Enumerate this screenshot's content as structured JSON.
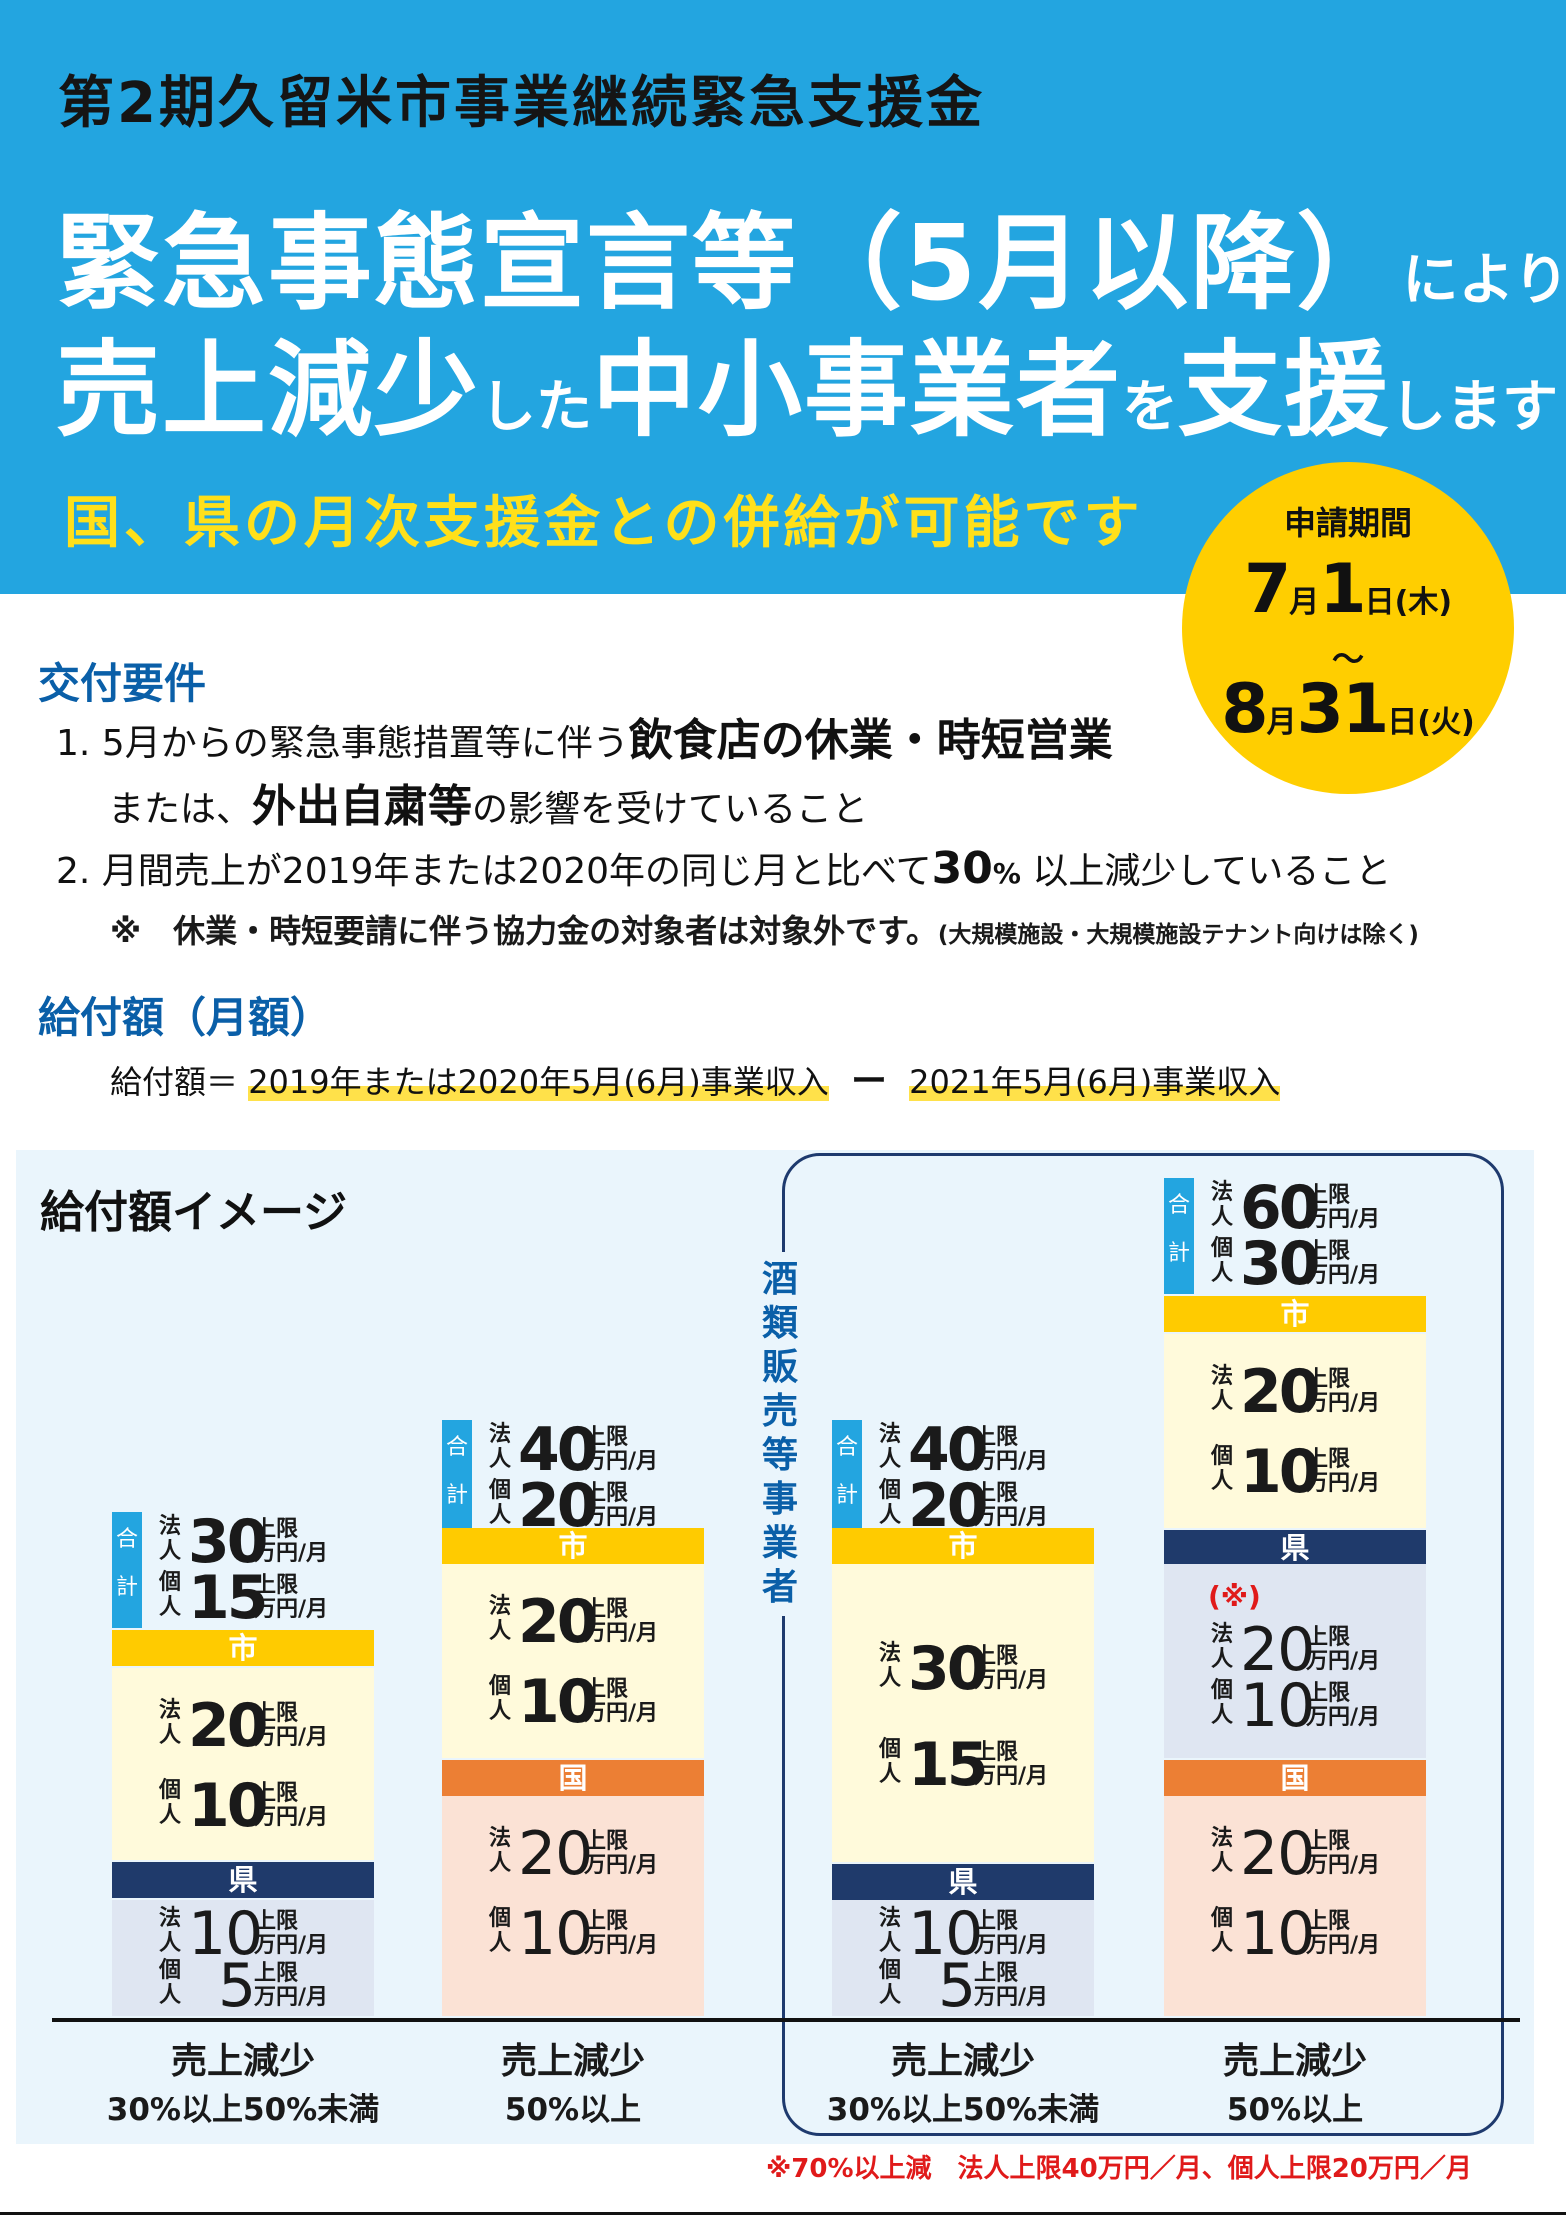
{
  "header": {
    "subtitle": "第2期久留米市事業継続緊急支援金",
    "line1_big": "緊急事態宣言等（5月以降）",
    "line1_small": "により",
    "line2_a": "売上減少",
    "line2_b": "した",
    "line2_c": "中小事業者",
    "line2_d": "を",
    "line2_e": "支援",
    "line2_f": "します",
    "yellow": "国、県の月次支援金との併給が可能です"
  },
  "period": {
    "label": "申請期間",
    "start_m": "7",
    "start_mu": "月",
    "start_d": "1",
    "start_du": "日(木)",
    "tilde": "〜",
    "end_m": "8",
    "end_mu": "月",
    "end_d": "31",
    "end_du": "日(火)"
  },
  "requirements": {
    "title": "交付要件",
    "r1_a": "1. 5月からの緊急事態措置等に伴う",
    "r1_b": "飲食店の休業・時短営業",
    "r1_c": "または、",
    "r1_d": "外出自粛等",
    "r1_e": "の影響を受けていること",
    "r2_a": "2. 月間売上が2019年または2020年の同じ月と比べて",
    "r2_b": "30",
    "r2_c": "%",
    "r2_d": " 以上減少していること",
    "note_a": "※　休業・時短要請に伴う協力金の対象者は対象外です。",
    "note_b": "(大規模施設・大規模施設テナント向けは除く)"
  },
  "amount": {
    "title": "給付額（月額）",
    "formula_label": "給付額＝",
    "formula_a": "2019年または2020年5月(6月)事業収入",
    "formula_minus": "ー",
    "formula_b": "2021年5月(6月)事業収入"
  },
  "image": {
    "title": "給付額イメージ",
    "liquor_label": [
      "酒",
      "類",
      "販",
      "売",
      "等",
      "事",
      "業",
      "者"
    ],
    "labels": {
      "corp": "法人",
      "indiv": "個人",
      "cap": "上限",
      "unit": "万円/月",
      "city": "市",
      "pref": "県",
      "nation": "国",
      "total": "合計",
      "ref": "(※)"
    },
    "columns": [
      {
        "total": [
          "30",
          "15"
        ],
        "city": [
          "20",
          "10"
        ],
        "pref": [
          "10",
          "5"
        ],
        "cap1": "売上減少",
        "cap2": "30%以上50%未満"
      },
      {
        "total": [
          "40",
          "20"
        ],
        "city": [
          "20",
          "10"
        ],
        "nation": [
          "20",
          "10"
        ],
        "cap1": "売上減少",
        "cap2": "50%以上"
      },
      {
        "total": [
          "40",
          "20"
        ],
        "city": [
          "30",
          "15"
        ],
        "pref": [
          "10",
          "5"
        ],
        "cap1": "売上減少",
        "cap2": "30%以上50%未満"
      },
      {
        "total": [
          "60",
          "30"
        ],
        "city": [
          "20",
          "10"
        ],
        "pref": [
          "20",
          "10"
        ],
        "nation": [
          "20",
          "10"
        ],
        "cap1": "売上減少",
        "cap2": "50%以上"
      }
    ],
    "footnote": "※70%以上減　法人上限40万円／月、個人上限20万円／月"
  },
  "colors": {
    "header_blue": "#23a5e0",
    "title_blue": "#0a5fa8",
    "yellow": "#ffcb00",
    "navy": "#1f3a6b",
    "orange": "#ec7f34",
    "red": "#e01a1a"
  }
}
